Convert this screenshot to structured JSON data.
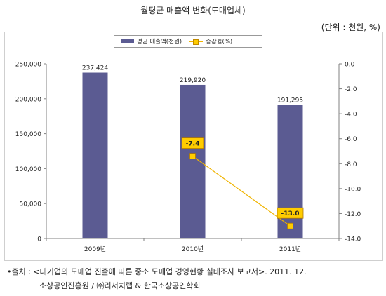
{
  "title": "월평균 매출액 변화(도매업체)",
  "unit": "(단위 : 천원, %)",
  "legend": {
    "bar_label": "평균 매출액(천원)",
    "line_label": "증감률(%)"
  },
  "source": {
    "line1": "•출처 : <대기업의 도매업 진출에 따른 중소 도매업 경영현황 실태조사 보고서>. 2011. 12.",
    "line2": "소상공인진흥원 / ㈜리서치랩 & 한국소상공인학회"
  },
  "colors": {
    "bar": "#5b5b92",
    "line": "#f0b400",
    "marker": "#ffcc00"
  },
  "chart_data": {
    "type": "bar",
    "categories": [
      "2009년",
      "2010년",
      "2011년"
    ],
    "series": [
      {
        "name": "평균 매출액(천원)",
        "type": "bar",
        "axis": "left",
        "values": [
          237424,
          219920,
          191295
        ],
        "labels": [
          "237,424",
          "219,920",
          "191,295"
        ]
      },
      {
        "name": "증감률(%)",
        "type": "line",
        "axis": "right",
        "points": [
          {
            "category": "2010년",
            "value": -7.4,
            "label": "-7.4"
          },
          {
            "category": "2011년",
            "value": -13.0,
            "label": "-13.0"
          }
        ]
      }
    ],
    "y_left": {
      "min": 0,
      "max": 250000,
      "ticks": [
        0,
        50000,
        100000,
        150000,
        200000,
        250000
      ],
      "tick_labels": [
        "0",
        "50,000",
        "100,000",
        "150,000",
        "200,000",
        "250,000"
      ]
    },
    "y_right": {
      "min": -14,
      "max": 0,
      "ticks": [
        0,
        -2,
        -4,
        -6,
        -8,
        -10,
        -12,
        -14
      ],
      "tick_labels": [
        "0.0",
        "-2.0",
        "-4.0",
        "-6.0",
        "-8.0",
        "-10.0",
        "-12.0",
        "-14.0"
      ]
    },
    "grid": false,
    "legend_position": "top"
  }
}
